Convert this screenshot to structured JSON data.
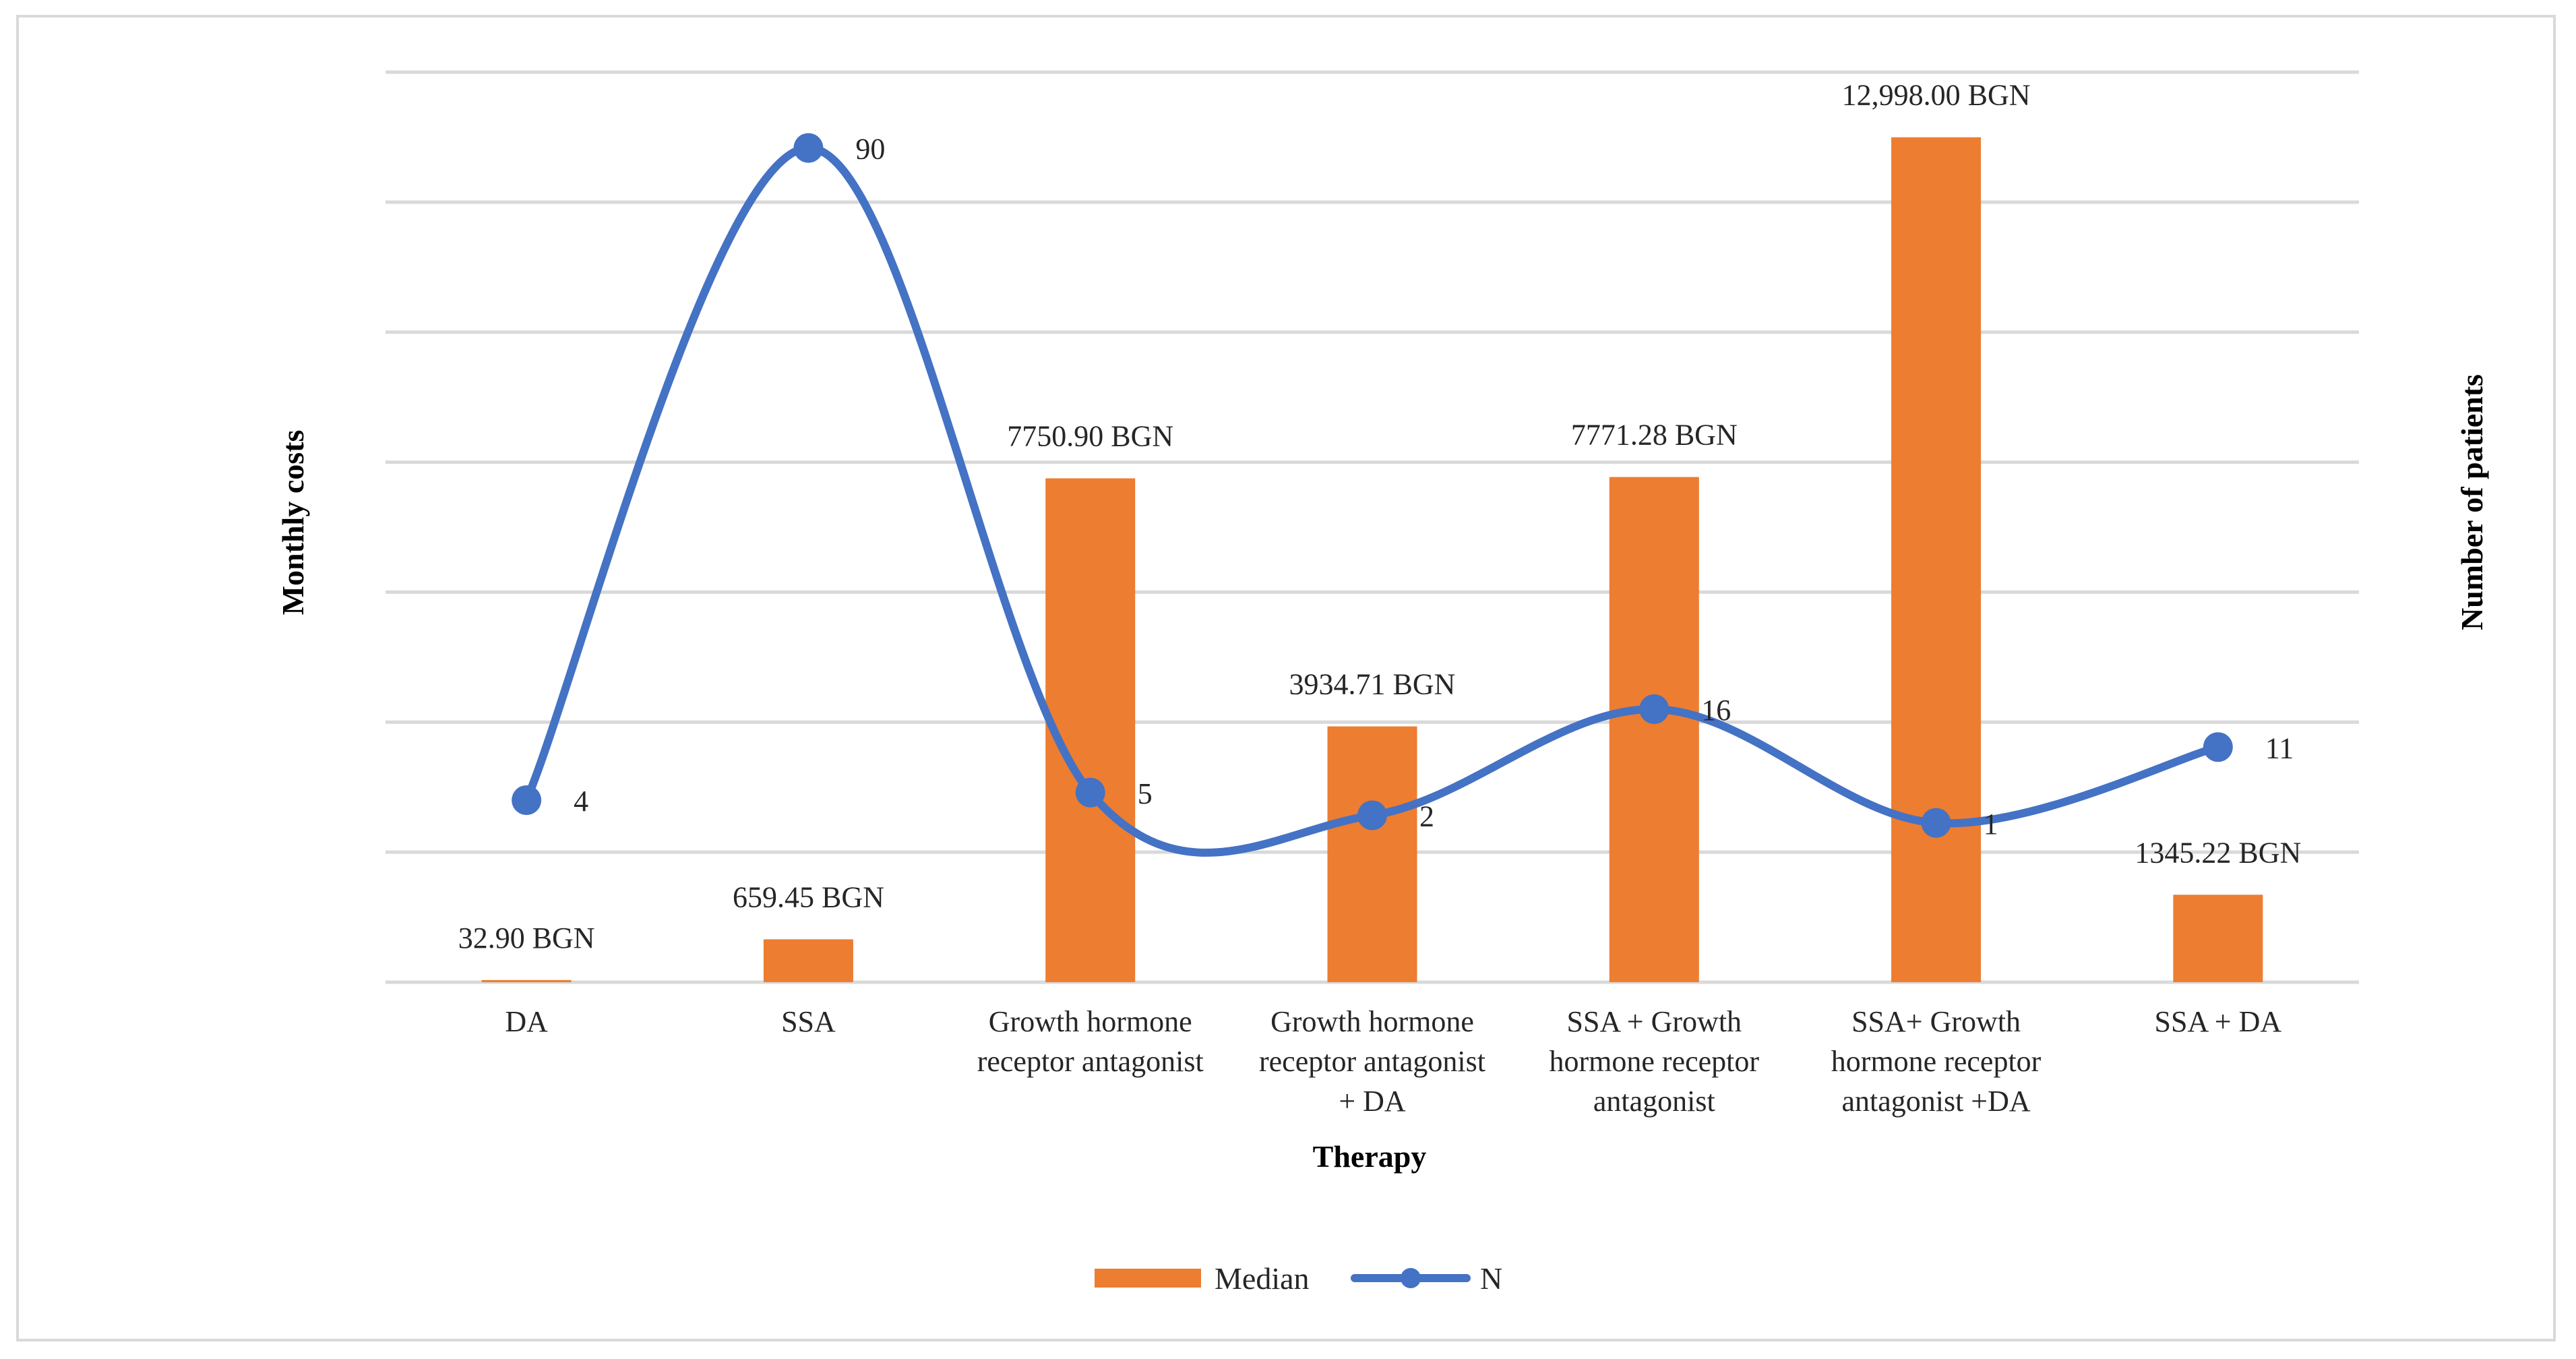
{
  "chart_data": {
    "type": "bar+line",
    "categories": [
      [
        "DA"
      ],
      [
        "SSA"
      ],
      [
        "Growth hormone",
        "receptor antagonist"
      ],
      [
        "Growth hormone",
        "receptor antagonist",
        "+ DA"
      ],
      [
        "SSA + Growth",
        "hormone receptor",
        "antagonist"
      ],
      [
        "SSA+ Growth",
        "hormone receptor",
        "antagonist +DA"
      ],
      [
        "SSA + DA"
      ]
    ],
    "series": [
      {
        "name": "Median",
        "type": "bar",
        "axis": "left",
        "color": "#ED7D31",
        "values": [
          32.9,
          659.45,
          7750.9,
          3934.71,
          7771.28,
          12998.0,
          1345.22
        ],
        "labels": [
          "32.90 BGN",
          "659.45 BGN",
          "7750.90 BGN",
          "3934.71 BGN",
          "7771.28 BGN",
          "12,998.00 BGN",
          "1345.22 BGN"
        ]
      },
      {
        "name": "N",
        "type": "line",
        "smooth": true,
        "axis": "right",
        "color": "#4472C4",
        "values": [
          4,
          90,
          5,
          2,
          16,
          1,
          11
        ],
        "labels": [
          "4",
          "90",
          "5",
          "2",
          "16",
          "1",
          "11"
        ]
      }
    ],
    "left_ylim": [
      0,
      14000
    ],
    "right_ylim": [
      -20,
      100
    ],
    "gridlines": 7,
    "xlabel": "Therapy",
    "ylabel_left": "Monthly costs",
    "ylabel_right": "Number of patients",
    "legend": [
      "Median",
      "N"
    ],
    "legend_position": "bottom"
  }
}
